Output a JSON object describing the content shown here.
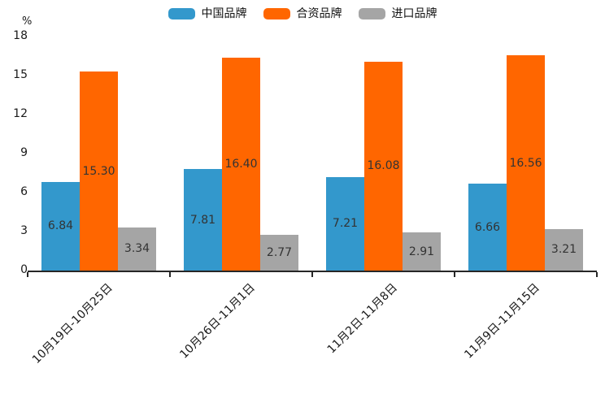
{
  "legend": {
    "items": [
      {
        "label": "中国品牌",
        "color": "#3398cc"
      },
      {
        "label": "合资品牌",
        "color": "#ff6600"
      },
      {
        "label": "进口品牌",
        "color": "#a5a5a5"
      }
    ]
  },
  "chart_data": {
    "type": "bar",
    "title": "",
    "categories": [
      "10月19日-10月25日",
      "10月26日-11月1日",
      "11月2日-11月8日",
      "11月9日-11月15日"
    ],
    "series": [
      {
        "name": "中国品牌",
        "color": "#3398cc",
        "values": [
          6.84,
          7.81,
          7.21,
          6.66
        ]
      },
      {
        "name": "合资品牌",
        "color": "#ff6600",
        "values": [
          15.3,
          16.4,
          16.08,
          16.56
        ]
      },
      {
        "name": "进口品牌",
        "color": "#a5a5a5",
        "values": [
          3.34,
          2.77,
          2.91,
          3.21
        ]
      }
    ],
    "value_labels": [
      [
        "6.84",
        "7.81",
        "7.21",
        "6.66"
      ],
      [
        "15.30",
        "16.40",
        "16.08",
        "16.56"
      ],
      [
        "3.34",
        "2.77",
        "2.91",
        "3.21"
      ]
    ],
    "xlabel": "",
    "ylabel": "%",
    "yticks": [
      0,
      3,
      6,
      9,
      12,
      15,
      18
    ],
    "ylim": [
      0,
      18
    ],
    "grid": false,
    "legend_position": "top",
    "value_label_position": "inside-center"
  },
  "colors": {
    "axis": "#262626",
    "text": "#1a1a1a",
    "value_text": "#333333"
  }
}
